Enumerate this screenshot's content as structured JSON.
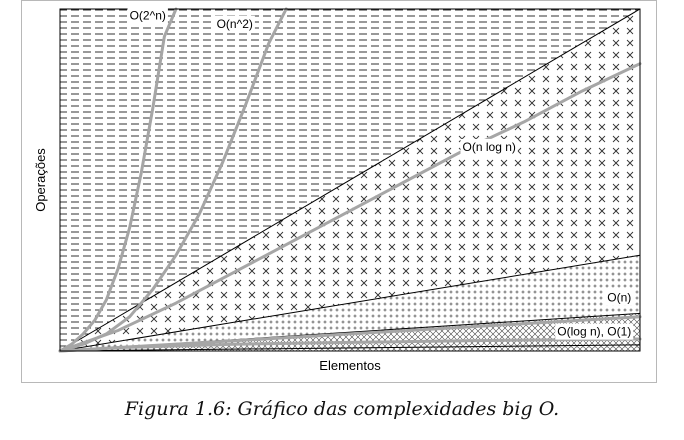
{
  "caption": "Figura 1.6: Gráfico das complexidades big O.",
  "chart_data": {
    "type": "area",
    "title": "",
    "xlabel": "Elementos",
    "ylabel": "Operações",
    "grid": false,
    "legend": "none",
    "xlim": [
      0,
      1
    ],
    "ylim": [
      0,
      1
    ],
    "series": [
      {
        "name": "O(2^n)",
        "label": "O(2^n)",
        "color": "#a6a6a6",
        "region_pattern": "dashes",
        "x": [
          0,
          0.02,
          0.04,
          0.06,
          0.08,
          0.1,
          0.12,
          0.14,
          0.16,
          0.18,
          0.2
        ],
        "y": [
          0,
          0.02,
          0.05,
          0.09,
          0.15,
          0.24,
          0.36,
          0.52,
          0.71,
          0.92,
          1.0
        ]
      },
      {
        "name": "O(n^2)",
        "label": "O(n^2)",
        "color": "#a6a6a6",
        "region_pattern": "dashes",
        "x": [
          0,
          0.04,
          0.08,
          0.12,
          0.16,
          0.2,
          0.24,
          0.28,
          0.32,
          0.36,
          0.39
        ],
        "y": [
          0,
          0.02,
          0.05,
          0.1,
          0.18,
          0.28,
          0.4,
          0.55,
          0.72,
          0.9,
          1.0
        ]
      },
      {
        "name": "O(n log n)",
        "label": "O(n log n)",
        "color": "#a6a6a6",
        "region_pattern": "crosses",
        "x": [
          0,
          0.1,
          0.2,
          0.3,
          0.4,
          0.5,
          0.6,
          0.7,
          0.8,
          0.9,
          1.0
        ],
        "y": [
          0,
          0.06,
          0.14,
          0.23,
          0.32,
          0.41,
          0.5,
          0.59,
          0.67,
          0.76,
          0.84
        ]
      },
      {
        "name": "O(n)",
        "label": "O(n)",
        "color": "#a6a6a6",
        "region_pattern": "plus",
        "x": [
          0,
          0.5,
          1.0
        ],
        "y": [
          0,
          0.05,
          0.1
        ]
      },
      {
        "name": "O(log n), O(1)",
        "label": "O(log n), O(1)",
        "color": "#a6a6a6",
        "region_pattern": "x-hatch",
        "x": [
          0,
          0.1,
          0.3,
          0.5,
          0.7,
          1.0
        ],
        "y": [
          0,
          0.01,
          0.02,
          0.025,
          0.03,
          0.035
        ]
      }
    ],
    "boundaries": [
      {
        "slope": 1.0
      },
      {
        "slope": 0.28
      },
      {
        "slope": 0.11
      },
      {
        "slope": 0.018
      }
    ]
  }
}
